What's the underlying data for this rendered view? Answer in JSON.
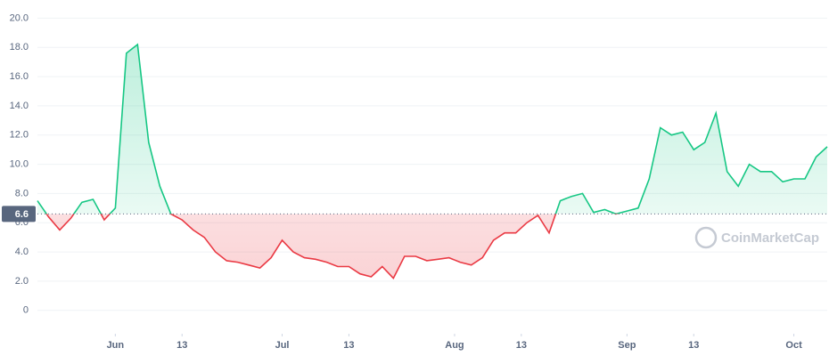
{
  "chart_data": {
    "type": "line",
    "watermark": "CoinMarketCap",
    "baseline": 6.6,
    "up_color": "#16c784",
    "down_color": "#ea3943",
    "grid": true,
    "xlim": [
      "05-18",
      "10-07"
    ],
    "xticks": [
      {
        "value": "06-01",
        "label": "Jun"
      },
      {
        "value": "06-13",
        "label": "13"
      },
      {
        "value": "07-01",
        "label": "Jul"
      },
      {
        "value": "07-13",
        "label": "13"
      },
      {
        "value": "08-01",
        "label": "Aug"
      },
      {
        "value": "08-13",
        "label": "13"
      },
      {
        "value": "09-01",
        "label": "Sep"
      },
      {
        "value": "09-13",
        "label": "13"
      },
      {
        "value": "10-01",
        "label": "Oct"
      }
    ],
    "ylim": [
      -1.6,
      21
    ],
    "yticks": [
      0,
      {
        "value": 2,
        "label": "2.0"
      },
      {
        "value": 4,
        "label": "4.0"
      },
      {
        "value": 6,
        "label": "6.0"
      },
      {
        "value": 8,
        "label": "8.0"
      },
      {
        "value": 10,
        "label": "10.0"
      },
      {
        "value": 12,
        "label": "12.0"
      },
      {
        "value": 14,
        "label": "14.0"
      },
      {
        "value": 16,
        "label": "16.0"
      },
      {
        "value": 18,
        "label": "18.0"
      },
      {
        "value": 20,
        "label": "20.0"
      }
    ],
    "x": [
      "05-18",
      "05-20",
      "05-22",
      "05-24",
      "05-26",
      "05-28",
      "05-30",
      "06-01",
      "06-03",
      "06-05",
      "06-07",
      "06-09",
      "06-11",
      "06-13",
      "06-15",
      "06-17",
      "06-19",
      "06-21",
      "06-23",
      "06-25",
      "06-27",
      "06-29",
      "07-01",
      "07-03",
      "07-05",
      "07-07",
      "07-09",
      "07-11",
      "07-13",
      "07-15",
      "07-17",
      "07-19",
      "07-21",
      "07-23",
      "07-25",
      "07-27",
      "07-29",
      "07-31",
      "08-02",
      "08-04",
      "08-06",
      "08-08",
      "08-10",
      "08-12",
      "08-14",
      "08-16",
      "08-18",
      "08-20",
      "08-22",
      "08-24",
      "08-26",
      "08-28",
      "08-30",
      "09-01",
      "09-03",
      "09-05",
      "09-07",
      "09-09",
      "09-11",
      "09-13",
      "09-15",
      "09-17",
      "09-19",
      "09-21",
      "09-23",
      "09-25",
      "09-27",
      "09-29",
      "10-01",
      "10-03",
      "10-05",
      "10-07"
    ],
    "values": [
      7.5,
      6.4,
      5.5,
      6.3,
      7.4,
      7.6,
      6.2,
      7.0,
      17.6,
      18.2,
      11.5,
      8.5,
      6.6,
      6.2,
      5.5,
      5.0,
      4.0,
      3.4,
      3.3,
      3.1,
      2.9,
      3.6,
      4.8,
      4.0,
      3.6,
      3.5,
      3.3,
      3.0,
      3.0,
      2.5,
      2.3,
      3.0,
      2.2,
      3.7,
      3.7,
      3.4,
      3.5,
      3.6,
      3.3,
      3.1,
      3.6,
      4.8,
      5.3,
      5.3,
      6.0,
      6.5,
      5.3,
      7.5,
      7.8,
      8.0,
      6.7,
      6.9,
      6.6,
      6.8,
      7.0,
      9.0,
      12.5,
      12.0,
      12.2,
      11.0,
      11.5,
      13.5,
      9.5,
      8.5,
      10.0,
      9.5,
      9.5,
      8.8,
      9.0,
      9.0,
      10.5,
      11.2
    ]
  }
}
